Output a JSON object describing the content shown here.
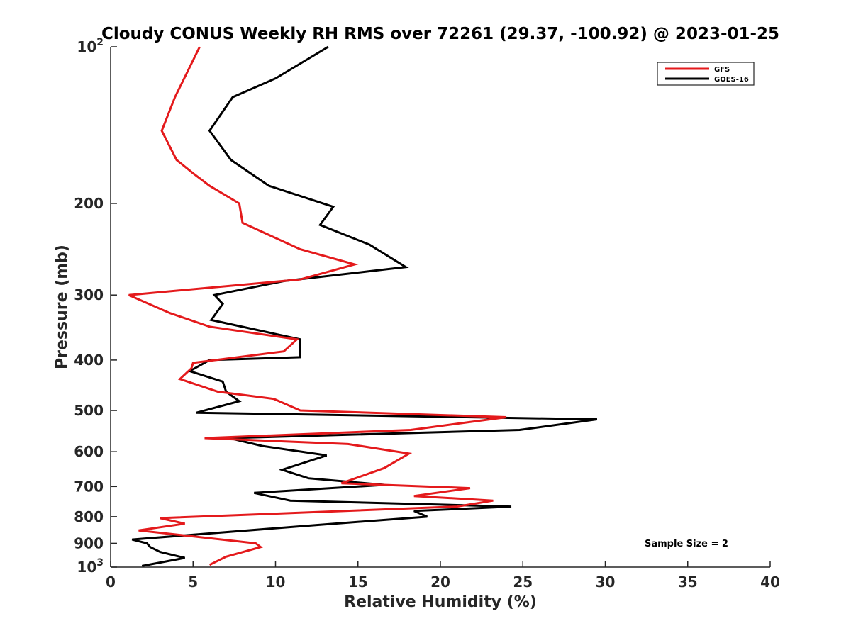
{
  "chart_data": {
    "type": "line",
    "title": "Cloudy CONUS Weekly RH RMS over 72261 (29.37, -100.92) @ 2023-01-25",
    "xlabel": "Relative Humidity (%)",
    "ylabel": "Pressure (mb)",
    "xlim": [
      0,
      40
    ],
    "ylim": [
      100,
      1000
    ],
    "yscale": "log",
    "y_reversed": true,
    "grid": false,
    "legend_position": "top-right",
    "x_ticks": [
      0,
      5,
      10,
      15,
      20,
      25,
      30,
      35,
      40
    ],
    "x_tick_labels": [
      "0",
      "5",
      "10",
      "15",
      "20",
      "25",
      "30",
      "35",
      "40"
    ],
    "y_ticks": [
      100,
      200,
      300,
      400,
      500,
      600,
      700,
      800,
      900,
      1000
    ],
    "y_tick_labels": [
      {
        "base": "10",
        "sup": "2"
      },
      {
        "base": "200",
        "sup": ""
      },
      {
        "base": "300",
        "sup": ""
      },
      {
        "base": "400",
        "sup": ""
      },
      {
        "base": "500",
        "sup": ""
      },
      {
        "base": "600",
        "sup": ""
      },
      {
        "base": "700",
        "sup": ""
      },
      {
        "base": "800",
        "sup": ""
      },
      {
        "base": "900",
        "sup": ""
      },
      {
        "base": "10",
        "sup": "3"
      }
    ],
    "annotation": "Sample Size = 2",
    "series": [
      {
        "name": "GFS",
        "color": "#e41a1c",
        "x": [
          5.4,
          3.9,
          3.1,
          4.0,
          5.0,
          6.0,
          7.8,
          8.0,
          11.5,
          14.8,
          11.5,
          1.1,
          3.6,
          6.0,
          11.3,
          10.5,
          5.0,
          4.9,
          4.2,
          6.5,
          9.9,
          11.5,
          24.0,
          18.2,
          5.7,
          14.4,
          18.1,
          16.6,
          14.0,
          21.8,
          18.4,
          23.2,
          21.0,
          3.0,
          4.5,
          1.7,
          8.8,
          9.1,
          7.0,
          6.0
        ],
        "y": [
          100,
          125,
          145,
          165,
          175,
          185,
          200,
          218,
          245,
          262,
          280,
          300,
          325,
          345,
          365,
          385,
          405,
          415,
          435,
          460,
          475,
          500,
          515,
          545,
          565,
          580,
          605,
          645,
          690,
          705,
          730,
          745,
          765,
          805,
          825,
          850,
          900,
          915,
          955,
          990
        ]
      },
      {
        "name": "GOES-16",
        "color": "#000000",
        "x": [
          13.2,
          10.0,
          7.4,
          6.0,
          7.3,
          9.6,
          13.5,
          12.7,
          15.7,
          17.9,
          10.5,
          6.3,
          6.8,
          6.1,
          11.5,
          11.5,
          6.0,
          4.8,
          6.8,
          7.0,
          7.8,
          5.2,
          29.5,
          24.8,
          7.2,
          9.2,
          13.1,
          10.4,
          12.0,
          16.6,
          8.7,
          10.9,
          24.3,
          18.4,
          19.2,
          12.5,
          1.3,
          2.2,
          2.4,
          3.0,
          4.5,
          1.9
        ],
        "y": [
          100,
          115,
          125,
          145,
          165,
          185,
          203,
          220,
          240,
          265,
          282,
          300,
          312,
          335,
          365,
          395,
          400,
          420,
          440,
          460,
          480,
          505,
          520,
          545,
          565,
          585,
          610,
          650,
          675,
          695,
          720,
          745,
          765,
          780,
          800,
          830,
          885,
          900,
          915,
          935,
          960,
          995
        ]
      }
    ]
  }
}
